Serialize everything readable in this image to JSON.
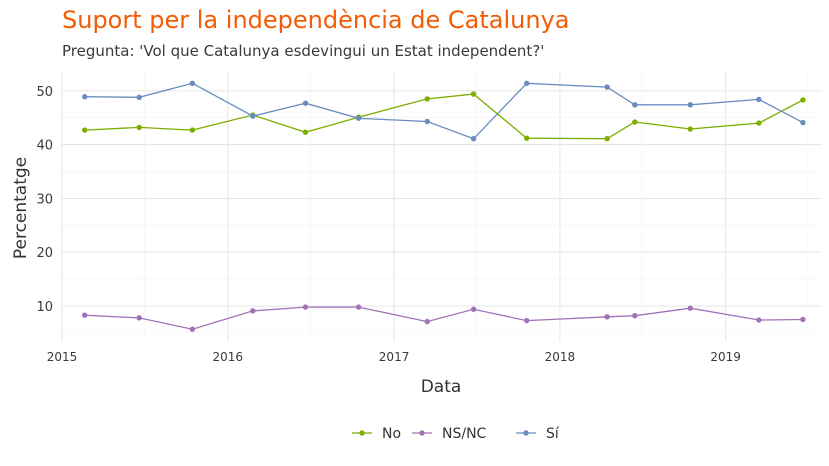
{
  "chart_data": {
    "type": "line",
    "title": "Suport per la independència de Catalunya",
    "subtitle": "Pregunta: 'Vol que Catalunya esdevingui un Estat independent?'",
    "xlabel": "Data",
    "ylabel": "Percentatge",
    "x_ticks": [
      "2015",
      "2016",
      "2017",
      "2018",
      "2019"
    ],
    "y_ticks": [
      10,
      20,
      30,
      40,
      50
    ],
    "xlim": [
      "2015-01-01",
      "2019-08-01"
    ],
    "ylim": [
      3.5,
      53.5
    ],
    "grid": true,
    "legend_position": "bottom",
    "x": [
      "2015-02-20",
      "2015-06-20",
      "2015-10-15",
      "2016-02-25",
      "2016-06-20",
      "2016-10-15",
      "2017-03-15",
      "2017-06-25",
      "2017-10-20",
      "2018-04-15",
      "2018-06-15",
      "2018-10-15",
      "2019-03-15",
      "2019-06-20"
    ],
    "series": [
      {
        "name": "No",
        "color": "#7cae00",
        "values": [
          42.7,
          43.2,
          42.7,
          45.5,
          42.3,
          45.1,
          48.5,
          49.4,
          41.2,
          41.1,
          44.2,
          42.9,
          44.0,
          48.3
        ]
      },
      {
        "name": "NS/NC",
        "color": "#a173b6",
        "values": [
          8.3,
          7.8,
          5.7,
          9.1,
          9.8,
          9.8,
          7.1,
          9.4,
          7.3,
          8.0,
          8.2,
          9.6,
          7.4,
          7.5
        ]
      },
      {
        "name": "Sí",
        "color": "#6b8cc0",
        "values": [
          48.9,
          48.8,
          51.4,
          45.3,
          47.7,
          44.9,
          44.3,
          41.1,
          51.4,
          50.7,
          47.4,
          47.4,
          48.4,
          44.1
        ]
      }
    ]
  }
}
